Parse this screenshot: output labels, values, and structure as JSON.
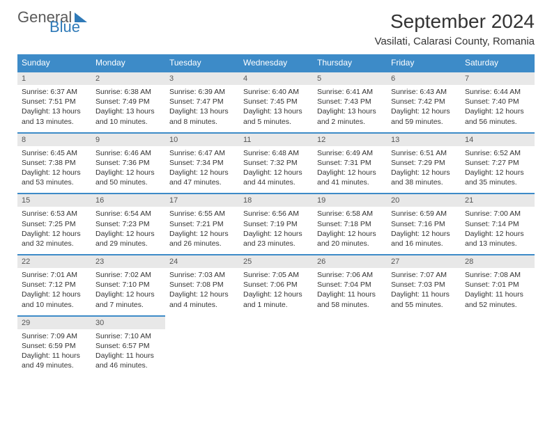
{
  "logo": {
    "text1": "General",
    "text2": "Blue"
  },
  "title": "September 2024",
  "location": "Vasilati, Calarasi County, Romania",
  "colors": {
    "header_bg": "#3d8bc8",
    "daynum_bg": "#e8e8e8",
    "logo_blue": "#2f7ab8"
  },
  "day_headers": [
    "Sunday",
    "Monday",
    "Tuesday",
    "Wednesday",
    "Thursday",
    "Friday",
    "Saturday"
  ],
  "weeks": [
    [
      {
        "n": "1",
        "sr": "Sunrise: 6:37 AM",
        "ss": "Sunset: 7:51 PM",
        "dl": "Daylight: 13 hours and 13 minutes."
      },
      {
        "n": "2",
        "sr": "Sunrise: 6:38 AM",
        "ss": "Sunset: 7:49 PM",
        "dl": "Daylight: 13 hours and 10 minutes."
      },
      {
        "n": "3",
        "sr": "Sunrise: 6:39 AM",
        "ss": "Sunset: 7:47 PM",
        "dl": "Daylight: 13 hours and 8 minutes."
      },
      {
        "n": "4",
        "sr": "Sunrise: 6:40 AM",
        "ss": "Sunset: 7:45 PM",
        "dl": "Daylight: 13 hours and 5 minutes."
      },
      {
        "n": "5",
        "sr": "Sunrise: 6:41 AM",
        "ss": "Sunset: 7:43 PM",
        "dl": "Daylight: 13 hours and 2 minutes."
      },
      {
        "n": "6",
        "sr": "Sunrise: 6:43 AM",
        "ss": "Sunset: 7:42 PM",
        "dl": "Daylight: 12 hours and 59 minutes."
      },
      {
        "n": "7",
        "sr": "Sunrise: 6:44 AM",
        "ss": "Sunset: 7:40 PM",
        "dl": "Daylight: 12 hours and 56 minutes."
      }
    ],
    [
      {
        "n": "8",
        "sr": "Sunrise: 6:45 AM",
        "ss": "Sunset: 7:38 PM",
        "dl": "Daylight: 12 hours and 53 minutes."
      },
      {
        "n": "9",
        "sr": "Sunrise: 6:46 AM",
        "ss": "Sunset: 7:36 PM",
        "dl": "Daylight: 12 hours and 50 minutes."
      },
      {
        "n": "10",
        "sr": "Sunrise: 6:47 AM",
        "ss": "Sunset: 7:34 PM",
        "dl": "Daylight: 12 hours and 47 minutes."
      },
      {
        "n": "11",
        "sr": "Sunrise: 6:48 AM",
        "ss": "Sunset: 7:32 PM",
        "dl": "Daylight: 12 hours and 44 minutes."
      },
      {
        "n": "12",
        "sr": "Sunrise: 6:49 AM",
        "ss": "Sunset: 7:31 PM",
        "dl": "Daylight: 12 hours and 41 minutes."
      },
      {
        "n": "13",
        "sr": "Sunrise: 6:51 AM",
        "ss": "Sunset: 7:29 PM",
        "dl": "Daylight: 12 hours and 38 minutes."
      },
      {
        "n": "14",
        "sr": "Sunrise: 6:52 AM",
        "ss": "Sunset: 7:27 PM",
        "dl": "Daylight: 12 hours and 35 minutes."
      }
    ],
    [
      {
        "n": "15",
        "sr": "Sunrise: 6:53 AM",
        "ss": "Sunset: 7:25 PM",
        "dl": "Daylight: 12 hours and 32 minutes."
      },
      {
        "n": "16",
        "sr": "Sunrise: 6:54 AM",
        "ss": "Sunset: 7:23 PM",
        "dl": "Daylight: 12 hours and 29 minutes."
      },
      {
        "n": "17",
        "sr": "Sunrise: 6:55 AM",
        "ss": "Sunset: 7:21 PM",
        "dl": "Daylight: 12 hours and 26 minutes."
      },
      {
        "n": "18",
        "sr": "Sunrise: 6:56 AM",
        "ss": "Sunset: 7:19 PM",
        "dl": "Daylight: 12 hours and 23 minutes."
      },
      {
        "n": "19",
        "sr": "Sunrise: 6:58 AM",
        "ss": "Sunset: 7:18 PM",
        "dl": "Daylight: 12 hours and 20 minutes."
      },
      {
        "n": "20",
        "sr": "Sunrise: 6:59 AM",
        "ss": "Sunset: 7:16 PM",
        "dl": "Daylight: 12 hours and 16 minutes."
      },
      {
        "n": "21",
        "sr": "Sunrise: 7:00 AM",
        "ss": "Sunset: 7:14 PM",
        "dl": "Daylight: 12 hours and 13 minutes."
      }
    ],
    [
      {
        "n": "22",
        "sr": "Sunrise: 7:01 AM",
        "ss": "Sunset: 7:12 PM",
        "dl": "Daylight: 12 hours and 10 minutes."
      },
      {
        "n": "23",
        "sr": "Sunrise: 7:02 AM",
        "ss": "Sunset: 7:10 PM",
        "dl": "Daylight: 12 hours and 7 minutes."
      },
      {
        "n": "24",
        "sr": "Sunrise: 7:03 AM",
        "ss": "Sunset: 7:08 PM",
        "dl": "Daylight: 12 hours and 4 minutes."
      },
      {
        "n": "25",
        "sr": "Sunrise: 7:05 AM",
        "ss": "Sunset: 7:06 PM",
        "dl": "Daylight: 12 hours and 1 minute."
      },
      {
        "n": "26",
        "sr": "Sunrise: 7:06 AM",
        "ss": "Sunset: 7:04 PM",
        "dl": "Daylight: 11 hours and 58 minutes."
      },
      {
        "n": "27",
        "sr": "Sunrise: 7:07 AM",
        "ss": "Sunset: 7:03 PM",
        "dl": "Daylight: 11 hours and 55 minutes."
      },
      {
        "n": "28",
        "sr": "Sunrise: 7:08 AM",
        "ss": "Sunset: 7:01 PM",
        "dl": "Daylight: 11 hours and 52 minutes."
      }
    ],
    [
      {
        "n": "29",
        "sr": "Sunrise: 7:09 AM",
        "ss": "Sunset: 6:59 PM",
        "dl": "Daylight: 11 hours and 49 minutes."
      },
      {
        "n": "30",
        "sr": "Sunrise: 7:10 AM",
        "ss": "Sunset: 6:57 PM",
        "dl": "Daylight: 11 hours and 46 minutes."
      },
      null,
      null,
      null,
      null,
      null
    ]
  ]
}
